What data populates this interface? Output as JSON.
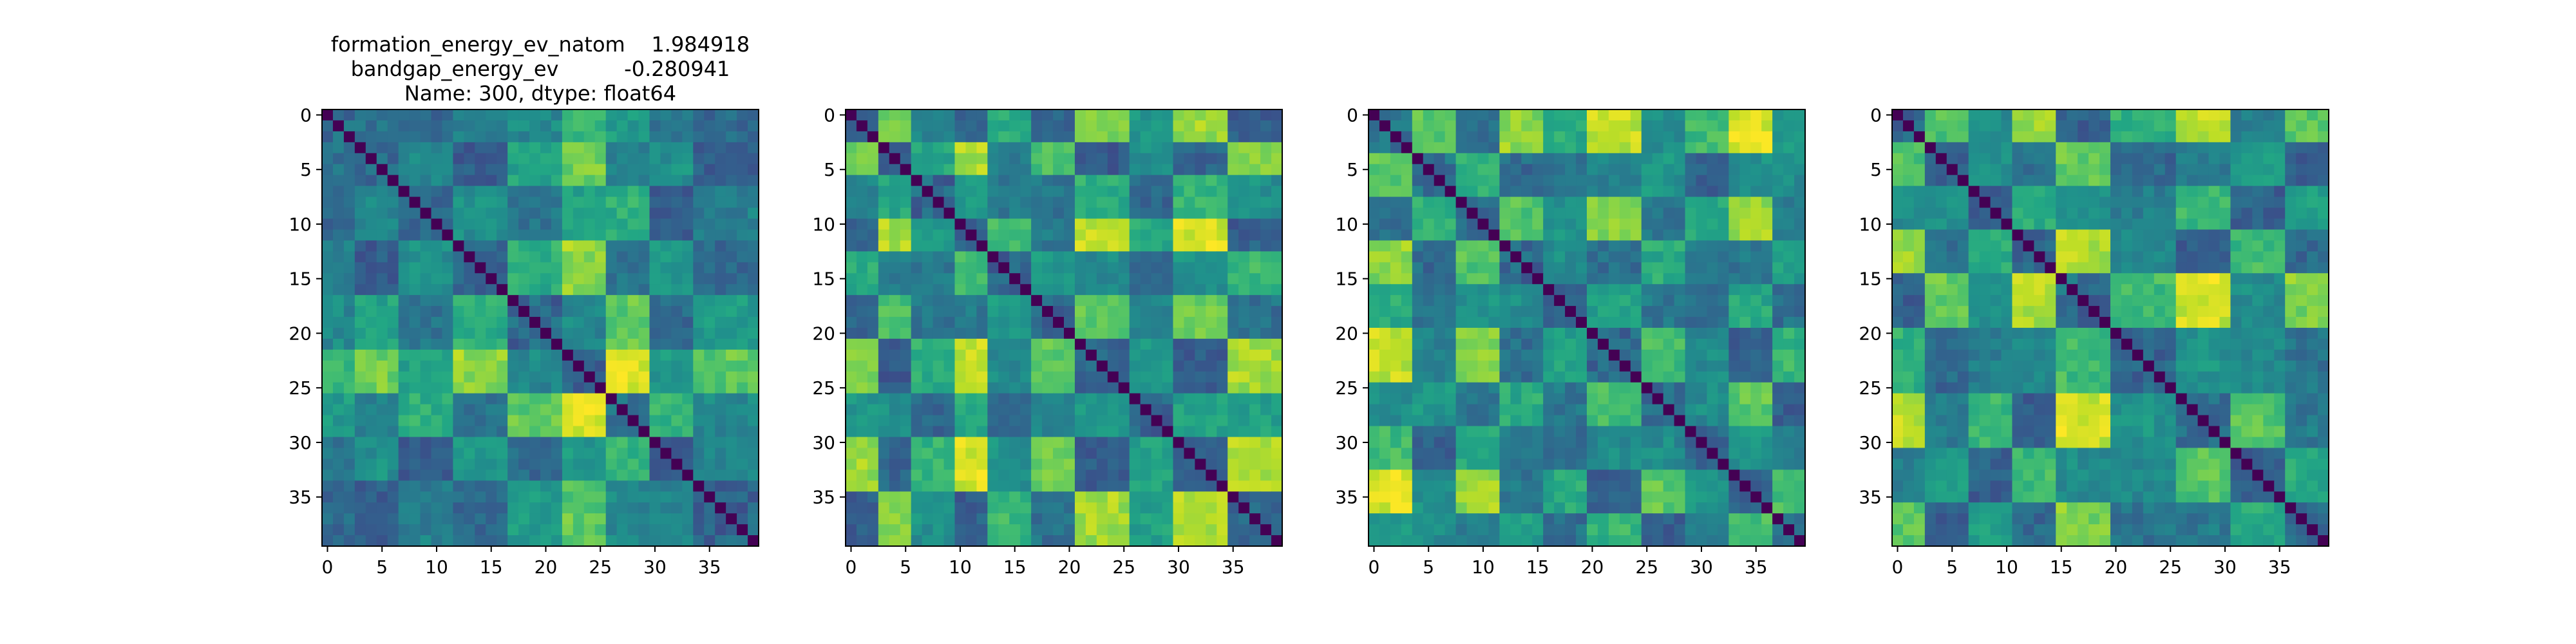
{
  "colormap": "viridis",
  "chart_data": [
    {
      "type": "heatmap",
      "title_lines": [
        "formation_energy_ev_natom    1.984918",
        "bandgap_energy_ev          -0.280941",
        "Name: 300, dtype: float64"
      ],
      "size": 40,
      "xticks": [
        0,
        5,
        10,
        15,
        20,
        25,
        30,
        35
      ],
      "yticks": [
        0,
        5,
        10,
        15,
        20,
        25,
        30,
        35
      ],
      "block_edges": [
        0,
        3,
        7,
        12,
        17,
        22,
        26,
        30,
        34,
        40
      ],
      "block_latent": [
        0.45,
        0.3,
        0.55,
        0.25,
        0.7,
        0.95,
        0.1,
        0.6,
        0.35
      ],
      "seed": 300
    },
    {
      "type": "heatmap",
      "title_lines": [],
      "size": 40,
      "xticks": [
        0,
        5,
        10,
        15,
        20,
        25,
        30,
        35
      ],
      "yticks": [
        0,
        5,
        10,
        15,
        20,
        25,
        30,
        35
      ],
      "block_edges": [
        0,
        3,
        6,
        10,
        13,
        17,
        21,
        26,
        30,
        35,
        40
      ],
      "block_latent": [
        0.85,
        0.2,
        0.6,
        0.95,
        0.4,
        0.75,
        0.15,
        0.5,
        0.1,
        0.9
      ],
      "seed": 301
    },
    {
      "type": "heatmap",
      "title_lines": [],
      "size": 40,
      "xticks": [
        0,
        5,
        10,
        15,
        20,
        25,
        30,
        35
      ],
      "yticks": [
        0,
        5,
        10,
        15,
        20,
        25,
        30,
        35
      ],
      "block_edges": [
        0,
        4,
        8,
        12,
        16,
        20,
        25,
        29,
        33,
        37,
        40
      ],
      "block_latent": [
        0.95,
        0.4,
        0.85,
        0.3,
        0.55,
        0.2,
        0.7,
        0.45,
        0.15,
        0.65
      ],
      "seed": 302
    },
    {
      "type": "heatmap",
      "title_lines": [],
      "size": 40,
      "xticks": [
        0,
        5,
        10,
        15,
        20,
        25,
        30,
        35
      ],
      "yticks": [
        0,
        5,
        10,
        15,
        20,
        25,
        30,
        35
      ],
      "block_edges": [
        0,
        3,
        7,
        11,
        15,
        20,
        26,
        31,
        36,
        40
      ],
      "block_latent": [
        0.9,
        0.35,
        0.65,
        0.2,
        0.95,
        0.45,
        0.15,
        0.7,
        0.3
      ],
      "seed": 303
    }
  ]
}
